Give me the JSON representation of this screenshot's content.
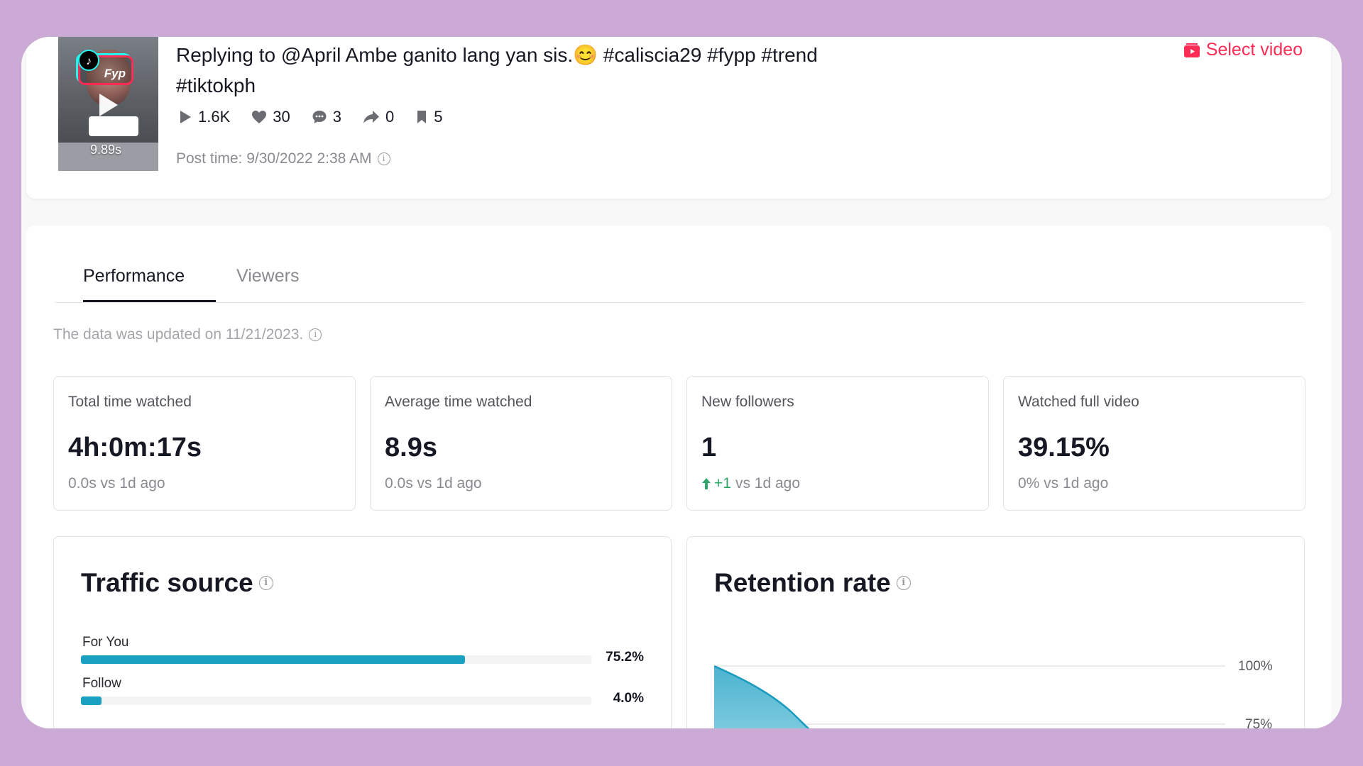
{
  "video": {
    "title": "Replying to @April Ambe ganito lang yan sis.😊 #caliscia29 #fypp #trend #tiktokph",
    "thumbnail_text": "Fyp",
    "duration": "9.89s",
    "stats": {
      "views": "1.6K",
      "likes": "30",
      "comments": "3",
      "shares": "0",
      "saves": "5"
    },
    "post_time": "Post time: 9/30/2022 2:38 AM",
    "select_label": "Select video"
  },
  "tabs": [
    {
      "label": "Performance",
      "active": true
    },
    {
      "label": "Viewers",
      "active": false
    }
  ],
  "updated_note": "The data was updated on 11/21/2023.",
  "metrics": [
    {
      "label": "Total time watched",
      "value": "4h:0m:17s",
      "compare": "0.0s vs 1d ago"
    },
    {
      "label": "Average time watched",
      "value": "8.9s",
      "compare": "0.0s vs 1d ago"
    },
    {
      "label": "New followers",
      "value": "1",
      "compare_up": "+1",
      "compare": "vs 1d ago"
    },
    {
      "label": "Watched full video",
      "value": "39.15%",
      "compare": "0% vs 1d ago"
    }
  ],
  "traffic_source": {
    "title": "Traffic source",
    "rows": [
      {
        "label": "For You",
        "percent_text": "75.2%",
        "percent": 75.2
      },
      {
        "label": "Follow",
        "percent_text": "4.0%",
        "percent": 4.0
      }
    ]
  },
  "retention": {
    "title": "Retention rate",
    "y_ticks": [
      "100%",
      "75%"
    ]
  },
  "colors": {
    "accent": "#fe2c55",
    "bar": "#1aa0c0",
    "up": "#2ea66a",
    "background": "#cbaad6"
  }
}
